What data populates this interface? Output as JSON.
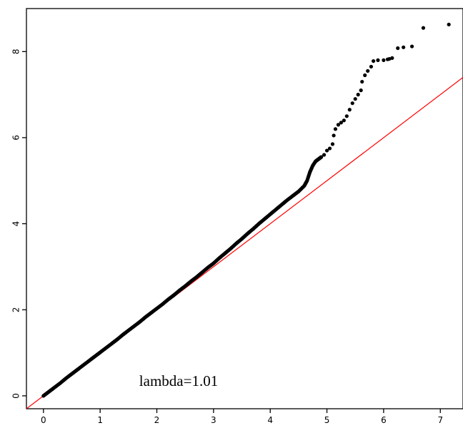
{
  "chart_data": {
    "type": "scatter",
    "title": "",
    "xlabel": "",
    "ylabel": "",
    "xlim": [
      -0.3,
      7.4
    ],
    "ylim": [
      -0.3,
      9.0
    ],
    "xticks": [
      0,
      1,
      2,
      3,
      4,
      5,
      6,
      7
    ],
    "yticks": [
      0,
      2,
      4,
      6,
      8
    ],
    "xtick_labels": [
      "0",
      "1",
      "2",
      "3",
      "4",
      "5",
      "6",
      "7"
    ],
    "ytick_labels": [
      "0",
      "2",
      "4",
      "6",
      "8"
    ],
    "annotation": "lambda=1.01",
    "reference_line": {
      "slope": 1.0,
      "intercept": 0.0,
      "color": "#ff0000"
    },
    "point_color": "#000000",
    "grid": false,
    "series": [
      {
        "points": [
          [
            0.0,
            0.0
          ],
          [
            0.1,
            0.1
          ],
          [
            0.2,
            0.2
          ],
          [
            0.3,
            0.3
          ],
          [
            0.4,
            0.41
          ],
          [
            0.5,
            0.51
          ],
          [
            0.6,
            0.61
          ],
          [
            0.7,
            0.71
          ],
          [
            0.8,
            0.81
          ],
          [
            0.9,
            0.91
          ],
          [
            1.0,
            1.01
          ],
          [
            1.1,
            1.11
          ],
          [
            1.2,
            1.21
          ],
          [
            1.3,
            1.31
          ],
          [
            1.4,
            1.42
          ],
          [
            1.5,
            1.52
          ],
          [
            1.6,
            1.62
          ],
          [
            1.7,
            1.72
          ],
          [
            1.8,
            1.83
          ],
          [
            1.9,
            1.93
          ],
          [
            2.0,
            2.03
          ],
          [
            2.1,
            2.13
          ],
          [
            2.2,
            2.24
          ],
          [
            2.3,
            2.34
          ],
          [
            2.4,
            2.45
          ],
          [
            2.5,
            2.55
          ],
          [
            2.6,
            2.66
          ],
          [
            2.7,
            2.76
          ],
          [
            2.8,
            2.87
          ],
          [
            2.9,
            2.98
          ],
          [
            3.0,
            3.08
          ],
          [
            3.1,
            3.2
          ],
          [
            3.2,
            3.31
          ],
          [
            3.3,
            3.42
          ],
          [
            3.4,
            3.54
          ],
          [
            3.5,
            3.65
          ],
          [
            3.6,
            3.77
          ],
          [
            3.7,
            3.88
          ],
          [
            3.8,
            4.0
          ],
          [
            3.9,
            4.11
          ],
          [
            4.0,
            4.22
          ],
          [
            4.1,
            4.33
          ],
          [
            4.2,
            4.44
          ],
          [
            4.3,
            4.55
          ],
          [
            4.4,
            4.65
          ],
          [
            4.5,
            4.75
          ],
          [
            4.6,
            4.88
          ],
          [
            4.65,
            5.0
          ],
          [
            4.7,
            5.2
          ],
          [
            4.75,
            5.35
          ],
          [
            4.8,
            5.45
          ],
          [
            4.85,
            5.5
          ],
          [
            4.9,
            5.55
          ],
          [
            4.95,
            5.6
          ],
          [
            5.0,
            5.7
          ],
          [
            5.05,
            5.75
          ],
          [
            5.1,
            5.85
          ],
          [
            5.12,
            6.05
          ],
          [
            5.15,
            6.2
          ],
          [
            5.2,
            6.3
          ],
          [
            5.25,
            6.35
          ],
          [
            5.3,
            6.4
          ],
          [
            5.35,
            6.5
          ],
          [
            5.4,
            6.65
          ],
          [
            5.45,
            6.8
          ],
          [
            5.5,
            6.9
          ],
          [
            5.55,
            7.0
          ],
          [
            5.6,
            7.1
          ],
          [
            5.62,
            7.3
          ],
          [
            5.67,
            7.45
          ],
          [
            5.72,
            7.55
          ],
          [
            5.78,
            7.65
          ],
          [
            5.82,
            7.78
          ],
          [
            5.9,
            7.8
          ],
          [
            6.0,
            7.8
          ],
          [
            6.07,
            7.82
          ],
          [
            6.1,
            7.83
          ],
          [
            6.15,
            7.85
          ],
          [
            6.25,
            8.08
          ],
          [
            6.35,
            8.1
          ],
          [
            6.5,
            8.12
          ],
          [
            6.7,
            8.55
          ],
          [
            7.15,
            8.63
          ]
        ]
      }
    ]
  }
}
